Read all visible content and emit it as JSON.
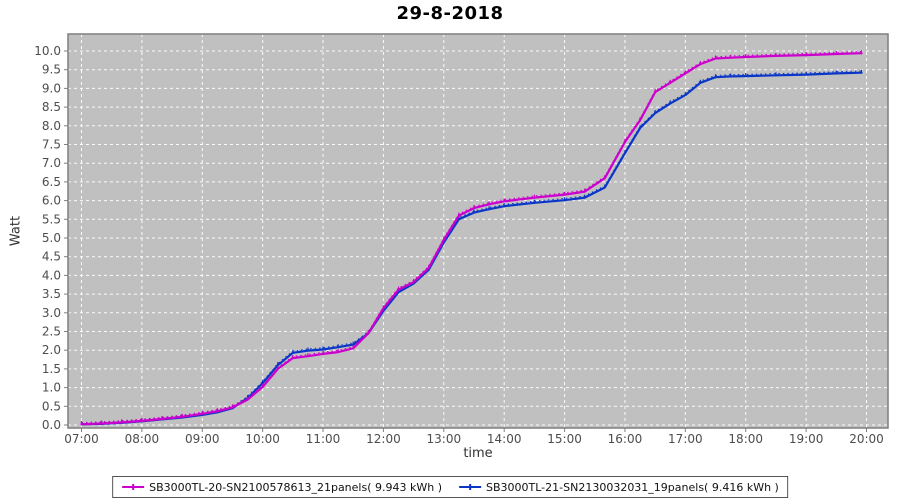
{
  "title": "29-8-2018",
  "colors": {
    "plot_background": "#C0C0C0",
    "gridline": "#FFFFFF",
    "plot_border": "#7F7F7F",
    "tick_color": "#7F7F7F",
    "tick_label_color": "#4D4D4D",
    "axis_title_color": "#333333",
    "series_magenta": "#CC00CC",
    "series_blue": "#0A36C8"
  },
  "chart_data": {
    "type": "line",
    "title": "29-8-2018",
    "xlabel": "time",
    "ylabel": "Watt",
    "ylim": [
      0,
      10
    ],
    "y_step": 0.5,
    "grid": "on",
    "legend_position": "bottom-center",
    "x_ticks": [
      "07:00",
      "08:00",
      "09:00",
      "10:00",
      "11:00",
      "12:00",
      "13:00",
      "14:00",
      "15:00",
      "16:00",
      "17:00",
      "18:00",
      "19:00",
      "20:00"
    ],
    "x": [
      "07:00",
      "07:20",
      "07:40",
      "08:00",
      "08:20",
      "08:40",
      "09:00",
      "09:15",
      "09:30",
      "09:45",
      "10:00",
      "10:15",
      "10:30",
      "10:45",
      "11:00",
      "11:15",
      "11:30",
      "11:45",
      "12:00",
      "12:15",
      "12:30",
      "12:45",
      "13:00",
      "13:15",
      "13:30",
      "13:45",
      "14:00",
      "14:30",
      "15:00",
      "15:20",
      "15:40",
      "16:00",
      "16:15",
      "16:30",
      "16:45",
      "17:00",
      "17:15",
      "17:30",
      "17:45",
      "18:00",
      "18:30",
      "19:00",
      "19:30",
      "19:55"
    ],
    "series": [
      {
        "name": "SB3000TL-20-SN2100578613_21panels( 9.943 kWh )",
        "total_kwh": "9.943",
        "color": "#CC00CC",
        "values": [
          0.02,
          0.04,
          0.07,
          0.11,
          0.16,
          0.22,
          0.3,
          0.37,
          0.47,
          0.68,
          1.02,
          1.5,
          1.79,
          1.84,
          1.9,
          1.95,
          2.05,
          2.45,
          3.12,
          3.62,
          3.82,
          4.2,
          4.95,
          5.6,
          5.8,
          5.9,
          5.98,
          6.08,
          6.16,
          6.24,
          6.6,
          7.57,
          8.15,
          8.9,
          9.15,
          9.4,
          9.65,
          9.8,
          9.82,
          9.84,
          9.87,
          9.89,
          9.92,
          9.94
        ]
      },
      {
        "name": "SB3000TL-21-SN2130032031_19panels( 9.416 kWh )",
        "total_kwh": "9.416",
        "color": "#0A36C8",
        "values": [
          0.02,
          0.03,
          0.06,
          0.1,
          0.15,
          0.2,
          0.27,
          0.34,
          0.45,
          0.72,
          1.12,
          1.6,
          1.93,
          1.99,
          2.02,
          2.08,
          2.15,
          2.45,
          3.05,
          3.55,
          3.78,
          4.15,
          4.88,
          5.5,
          5.68,
          5.77,
          5.85,
          5.94,
          6.01,
          6.08,
          6.35,
          7.27,
          7.94,
          8.34,
          8.6,
          8.82,
          9.15,
          9.3,
          9.32,
          9.33,
          9.35,
          9.37,
          9.4,
          9.42
        ]
      }
    ]
  },
  "legend": {
    "items": [
      {
        "label": "SB3000TL-20-SN2100578613_21panels( 9.943 kWh )"
      },
      {
        "label": "SB3000TL-21-SN2130032031_19panels( 9.416 kWh )"
      }
    ]
  }
}
